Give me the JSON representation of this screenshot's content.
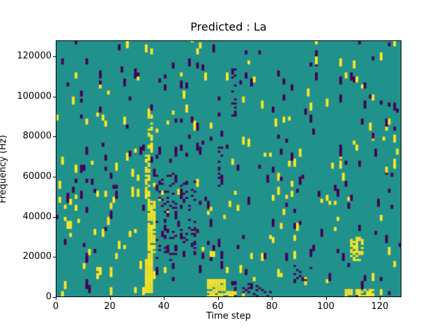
{
  "chart_data": {
    "type": "heatmap",
    "title": "Predicted : La",
    "xlabel": "Time step",
    "ylabel": "Frequency (Hz)",
    "x_range": [
      0,
      128
    ],
    "y_range": [
      0,
      128000
    ],
    "x_ticks": [
      0,
      20,
      40,
      60,
      80,
      100,
      120
    ],
    "y_ticks": [
      0,
      20000,
      40000,
      60000,
      80000,
      100000,
      120000
    ],
    "grid": {
      "cols": 128,
      "rows": 128
    },
    "colors": {
      "mid": "#21918c",
      "low": "#440154",
      "high": "#fde725"
    },
    "legend": "none",
    "pattern": {
      "seed": 1337,
      "scatter": {
        "low_density": 0.013,
        "high_density": 0.011,
        "bar_min": 2,
        "bar_max": 4
      },
      "features": [
        {
          "x": [
            33,
            36
          ],
          "y": [
            2000,
            22000
          ],
          "value": "high",
          "density": 0.9
        },
        {
          "x": [
            34,
            37
          ],
          "y": [
            22000,
            48000
          ],
          "value": "high",
          "density": 0.8
        },
        {
          "x": [
            33,
            35
          ],
          "y": [
            48000,
            72000
          ],
          "value": "high",
          "density": 0.7
        },
        {
          "x": [
            34,
            36
          ],
          "y": [
            72000,
            96000
          ],
          "value": "high",
          "density": 0.25
        },
        {
          "x": [
            37,
            45
          ],
          "y": [
            18000,
            62000
          ],
          "value": "low",
          "density": 0.18
        },
        {
          "x": [
            46,
            52
          ],
          "y": [
            24000,
            58000
          ],
          "value": "low",
          "density": 0.14
        },
        {
          "x": [
            56,
            63
          ],
          "y": [
            0,
            9000
          ],
          "value": "high",
          "density": 0.85
        },
        {
          "x": [
            63,
            70
          ],
          "y": [
            0,
            4000
          ],
          "value": "high",
          "density": 0.5
        },
        {
          "x": [
            64,
            80
          ],
          "y": [
            0,
            7000
          ],
          "value": "low",
          "density": 0.22
        },
        {
          "x": [
            60,
            62
          ],
          "y": [
            55000,
            75000
          ],
          "value": "low",
          "density": 0.3
        },
        {
          "x": [
            65,
            67
          ],
          "y": [
            90000,
            115000
          ],
          "value": "low",
          "density": 0.3
        },
        {
          "x": [
            88,
            95
          ],
          "y": [
            8000,
            16000
          ],
          "value": "low",
          "density": 0.18
        },
        {
          "x": [
            107,
            118
          ],
          "y": [
            0,
            4000
          ],
          "value": "high",
          "density": 0.8
        },
        {
          "x": [
            109,
            114
          ],
          "y": [
            18000,
            30000
          ],
          "value": "high",
          "density": 0.45
        }
      ]
    }
  }
}
